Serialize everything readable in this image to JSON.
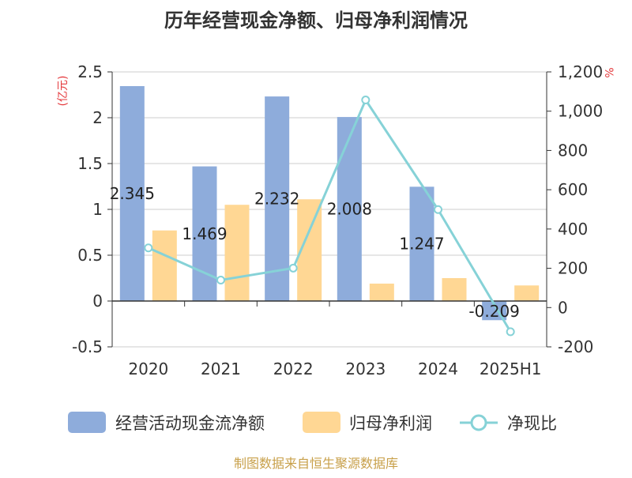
{
  "chart_data": {
    "type": "bar",
    "title": "历年经营现金净额、归母净利润情况",
    "categories": [
      "2020",
      "2021",
      "2022",
      "2023",
      "2024",
      "2025H1"
    ],
    "left_axis": {
      "unit": "(亿元)",
      "ylim": [
        -0.5,
        2.5
      ],
      "ticks": [
        -0.5,
        0,
        0.5,
        1,
        1.5,
        2,
        2.5
      ],
      "tick_labels": [
        "-0.5",
        "0",
        "0.5",
        "1",
        "1.5",
        "2",
        "2.5"
      ]
    },
    "right_axis": {
      "unit": "%",
      "ylim": [
        -200,
        1200
      ],
      "ticks": [
        -200,
        0,
        200,
        400,
        600,
        800,
        1000,
        1200
      ],
      "tick_labels": [
        "-200",
        "0",
        "200",
        "400",
        "600",
        "800",
        "1,000",
        "1,200"
      ]
    },
    "series": [
      {
        "name": "经营活动现金流净额",
        "type": "bar",
        "axis": "left",
        "color": "#8eacdb",
        "values": [
          2.345,
          1.469,
          2.232,
          2.008,
          1.247,
          -0.209
        ],
        "data_labels": [
          "2.345",
          "1.469",
          "2.232",
          "2.008",
          "1.247",
          "-0.209"
        ]
      },
      {
        "name": "归母净利润",
        "type": "bar",
        "axis": "left",
        "color": "#ffd794",
        "values": [
          0.77,
          1.05,
          1.11,
          0.19,
          0.25,
          0.17
        ]
      },
      {
        "name": "净现比",
        "type": "line",
        "axis": "right",
        "color": "#86d2d7",
        "values": [
          304,
          140,
          201,
          1057,
          499,
          -123
        ]
      }
    ],
    "legend_position": "bottom",
    "grid": true
  },
  "source_note": "制图数据来自恒生聚源数据库"
}
